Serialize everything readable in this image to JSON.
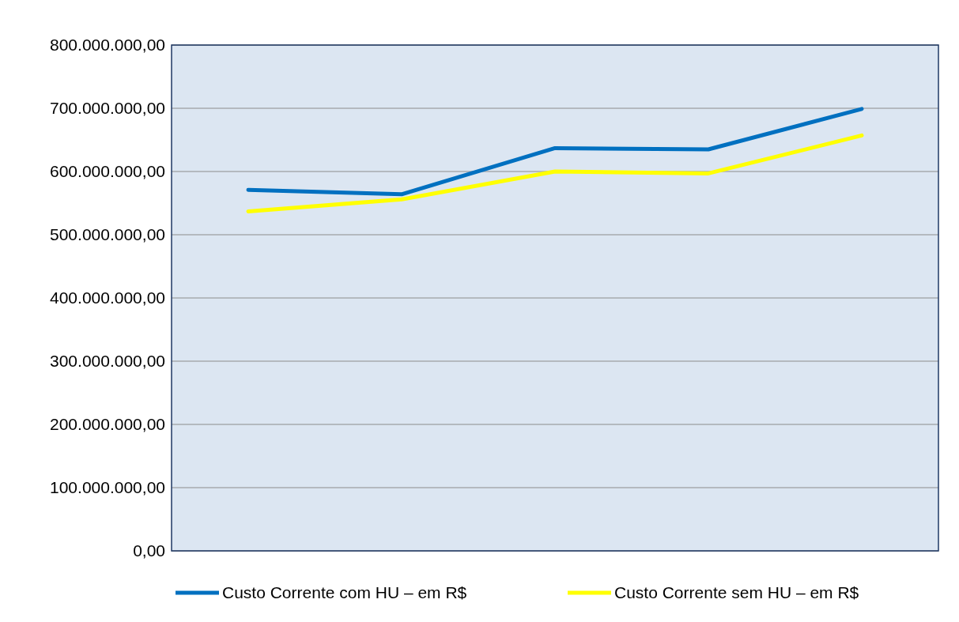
{
  "chart_data": {
    "type": "line",
    "categories": [
      null,
      null,
      null,
      null,
      null
    ],
    "series": [
      {
        "name": "Custo Corrente com HU – em R$",
        "color": "#0070c0",
        "values": [
          571000000,
          564000000,
          637000000,
          635000000,
          699000000
        ]
      },
      {
        "name": "Custo Corrente sem HU – em R$",
        "color": "#ffff00",
        "values": [
          537000000,
          556000000,
          600000000,
          597000000,
          657000000
        ]
      }
    ],
    "ylim": [
      0,
      800000000
    ],
    "yticks": [
      {
        "value": 0,
        "label": "0,00"
      },
      {
        "value": 100000000,
        "label": "100.000.000,00"
      },
      {
        "value": 200000000,
        "label": "200.000.000,00"
      },
      {
        "value": 300000000,
        "label": "300.000.000,00"
      },
      {
        "value": 400000000,
        "label": "400.000.000,00"
      },
      {
        "value": 500000000,
        "label": "500.000.000,00"
      },
      {
        "value": 600000000,
        "label": "600.000.000,00"
      },
      {
        "value": 700000000,
        "label": "700.000.000,00"
      },
      {
        "value": 800000000,
        "label": "800.000.000,00"
      }
    ],
    "grid": "y",
    "legend": "bottom",
    "marker": "none",
    "line_style": "solid"
  }
}
